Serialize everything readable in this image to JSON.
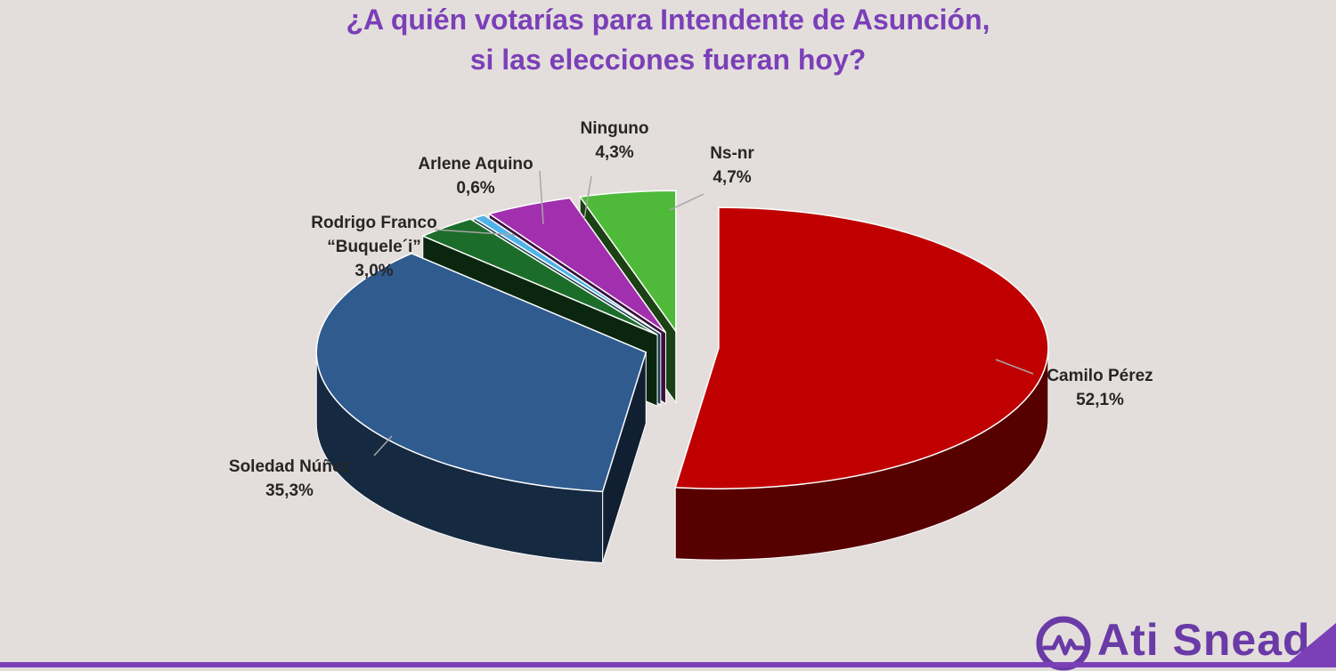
{
  "chart_data": {
    "type": "pie",
    "title_lines": [
      "¿A quién votarías para Intendente de Asunción,",
      "si las elecciones fueran hoy?"
    ],
    "slices": [
      {
        "label_lines": [
          "Camilo Pérez"
        ],
        "value": 52.1,
        "value_label": "52,1%",
        "color": "#c00000"
      },
      {
        "label_lines": [
          "Soledad Núñez"
        ],
        "value": 35.3,
        "value_label": "35,3%",
        "color": "#2f5b8f"
      },
      {
        "label_lines": [
          "Rodrigo Franco",
          "“Buquele´i”"
        ],
        "value": 3.0,
        "value_label": "3,0%",
        "color": "#1d6d2a"
      },
      {
        "label_lines": [
          "Arlene Aquino"
        ],
        "value": 0.6,
        "value_label": "0,6%",
        "color": "#4fb3e8"
      },
      {
        "label_lines": [
          "Ninguno"
        ],
        "value": 4.3,
        "value_label": "4,3%",
        "color": "#a22fae"
      },
      {
        "label_lines": [
          "Ns-nr"
        ],
        "value": 4.7,
        "value_label": "4,7%",
        "color": "#4fba3a"
      }
    ],
    "legend": "none",
    "labels": "outside-with-leader-lines"
  },
  "branding": {
    "logo_text": "Ati Snead",
    "logo_icon": "pulse-line-circle-icon",
    "accent_color": "#6a3aa7"
  }
}
